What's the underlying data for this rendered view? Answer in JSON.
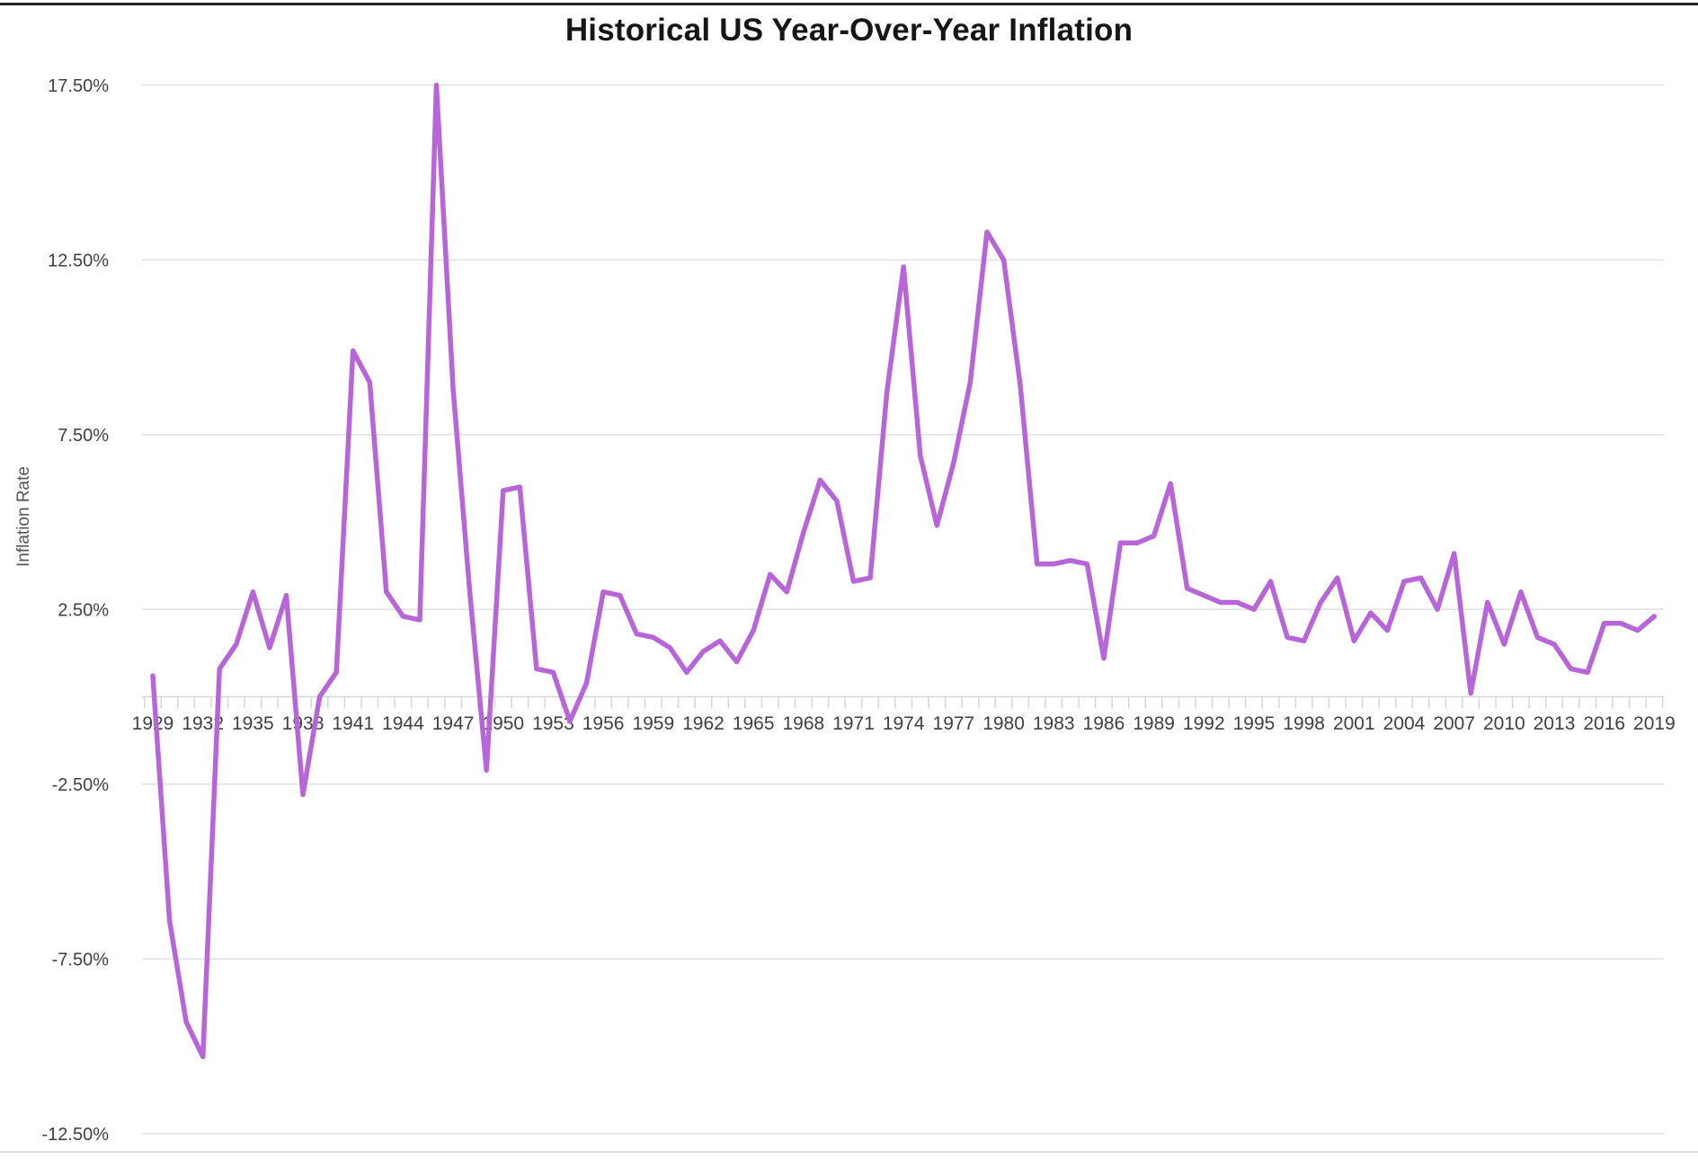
{
  "title": "Historical US Year-Over-Year Inflation",
  "chart_data": {
    "type": "line",
    "title": "Historical US Year-Over-Year Inflation",
    "xlabel": "",
    "ylabel": "Inflation Rate",
    "legend": "none",
    "grid": "horizontal-only",
    "line_color": "#b765d8",
    "axis_text_color": "#3f3f3f",
    "gridline_color": "#e0e0e0",
    "tick_color": "#d6d6d6",
    "ylim": [
      -12.5,
      17.5
    ],
    "y_tick_labels": [
      "17.50%",
      "12.50%",
      "7.50%",
      "2.50%",
      "-2.50%",
      "-7.50%",
      "-12.50%"
    ],
    "y_tick_values": [
      17.5,
      12.5,
      7.5,
      2.5,
      -2.5,
      -7.5,
      -12.5
    ],
    "x_tick_years": [
      1929,
      1932,
      1935,
      1938,
      1941,
      1944,
      1947,
      1950,
      1953,
      1956,
      1959,
      1962,
      1965,
      1968,
      1971,
      1974,
      1977,
      1980,
      1983,
      1986,
      1989,
      1992,
      1995,
      1998,
      2001,
      2004,
      2007,
      2010,
      2013,
      2016,
      2019
    ],
    "years": [
      1929,
      1930,
      1931,
      1932,
      1933,
      1934,
      1935,
      1936,
      1937,
      1938,
      1939,
      1940,
      1941,
      1942,
      1943,
      1944,
      1945,
      1946,
      1947,
      1948,
      1949,
      1950,
      1951,
      1952,
      1953,
      1954,
      1955,
      1956,
      1957,
      1958,
      1959,
      1960,
      1961,
      1962,
      1963,
      1964,
      1965,
      1966,
      1967,
      1968,
      1969,
      1970,
      1971,
      1972,
      1973,
      1974,
      1975,
      1976,
      1977,
      1978,
      1979,
      1980,
      1981,
      1982,
      1983,
      1984,
      1985,
      1986,
      1987,
      1988,
      1989,
      1990,
      1991,
      1992,
      1993,
      1994,
      1995,
      1996,
      1997,
      1998,
      1999,
      2000,
      2001,
      2002,
      2003,
      2004,
      2005,
      2006,
      2007,
      2008,
      2009,
      2010,
      2011,
      2012,
      2013,
      2014,
      2015,
      2016,
      2017,
      2018,
      2019
    ],
    "values": [
      0.6,
      -6.4,
      -9.3,
      -10.3,
      0.8,
      1.5,
      3.0,
      1.4,
      2.9,
      -2.8,
      0.0,
      0.7,
      9.9,
      9.0,
      3.0,
      2.3,
      2.2,
      17.5,
      8.8,
      3.0,
      -2.1,
      5.9,
      6.0,
      0.8,
      0.7,
      -0.7,
      0.4,
      3.0,
      2.9,
      1.8,
      1.7,
      1.4,
      0.7,
      1.3,
      1.6,
      1.0,
      1.9,
      3.5,
      3.0,
      4.7,
      6.2,
      5.6,
      3.3,
      3.4,
      8.7,
      12.3,
      6.9,
      4.9,
      6.7,
      9.0,
      13.3,
      12.5,
      8.9,
      3.8,
      3.8,
      3.9,
      3.8,
      1.1,
      4.4,
      4.4,
      4.6,
      6.1,
      3.1,
      2.9,
      2.7,
      2.7,
      2.5,
      3.3,
      1.7,
      1.6,
      2.7,
      3.4,
      1.6,
      2.4,
      1.9,
      3.3,
      3.4,
      2.5,
      4.1,
      0.1,
      2.7,
      1.5,
      3.0,
      1.7,
      1.5,
      0.8,
      0.7,
      2.1,
      2.1,
      1.9,
      2.3
    ]
  }
}
